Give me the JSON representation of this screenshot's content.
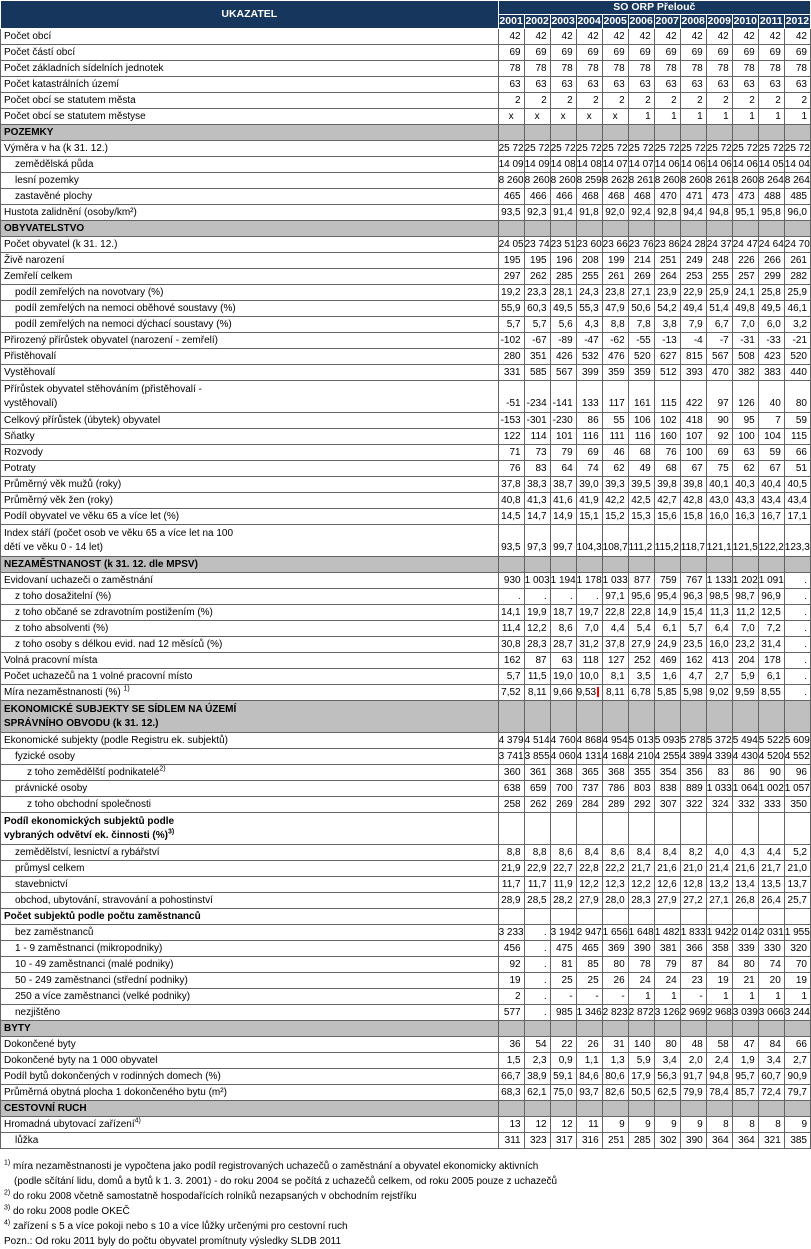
{
  "colors": {
    "header_bg": "#17365D",
    "header_text": "#FFFFFF",
    "section_bg": "#BFBFBF",
    "cell_border": "#636363",
    "cursor_mark": "#FF0000"
  },
  "header": {
    "ukazatel": "UKAZATEL",
    "region": "SO ORP Přelouč",
    "years": [
      "2001",
      "2002",
      "2003",
      "2004",
      "2005",
      "2006",
      "2007",
      "2008",
      "2009",
      "2010",
      "2011",
      "2012"
    ]
  },
  "rows": [
    {
      "t": "r",
      "label": "Počet obcí",
      "ind": 0,
      "v": [
        "42",
        "42",
        "42",
        "42",
        "42",
        "42",
        "42",
        "42",
        "42",
        "42",
        "42",
        "42"
      ]
    },
    {
      "t": "r",
      "label": "Počet částí obcí",
      "ind": 0,
      "v": [
        "69",
        "69",
        "69",
        "69",
        "69",
        "69",
        "69",
        "69",
        "69",
        "69",
        "69",
        "69"
      ]
    },
    {
      "t": "r",
      "label": "Počet základních sídelních jednotek",
      "ind": 0,
      "v": [
        "78",
        "78",
        "78",
        "78",
        "78",
        "78",
        "78",
        "78",
        "78",
        "78",
        "78",
        "78"
      ]
    },
    {
      "t": "r",
      "label": "Počet katastrálních území",
      "ind": 0,
      "v": [
        "63",
        "63",
        "63",
        "63",
        "63",
        "63",
        "63",
        "63",
        "63",
        "63",
        "63",
        "63"
      ]
    },
    {
      "t": "r",
      "label": "Počet obcí se statutem města",
      "ind": 0,
      "v": [
        "2",
        "2",
        "2",
        "2",
        "2",
        "2",
        "2",
        "2",
        "2",
        "2",
        "2",
        "2"
      ]
    },
    {
      "t": "r",
      "label": "Počet obcí se statutem městyse",
      "ind": 0,
      "v": [
        "x",
        "x",
        "x",
        "x",
        "x",
        "1",
        "1",
        "1",
        "1",
        "1",
        "1",
        "1"
      ]
    },
    {
      "t": "s",
      "label": "POZEMKY"
    },
    {
      "t": "r",
      "label": "Výměra v ha (k 31. 12.)",
      "ind": 0,
      "v": [
        "25 722",
        "25 722",
        "25 722",
        "25 721",
        "25 721",
        "25 721",
        "25 721",
        "25 721",
        "25 721",
        "25 722",
        "25 722",
        "25 726"
      ]
    },
    {
      "t": "r",
      "label": "zemědělská půda",
      "ind": 1,
      "v": [
        "14 098",
        "14 092",
        "14 089",
        "14 083",
        "14 075",
        "14 071",
        "14 069",
        "14 066",
        "14 062",
        "14 061",
        "14 055",
        "14 049"
      ]
    },
    {
      "t": "r",
      "label": "lesní pozemky",
      "ind": 1,
      "v": [
        "8 260",
        "8 260",
        "8 260",
        "8 259",
        "8 262",
        "8 261",
        "8 260",
        "8 260",
        "8 261",
        "8 260",
        "8 264",
        "8 264"
      ]
    },
    {
      "t": "r",
      "label": "zastavěné plochy",
      "ind": 1,
      "v": [
        "465",
        "466",
        "466",
        "468",
        "468",
        "468",
        "470",
        "471",
        "473",
        "473",
        "488",
        "485"
      ]
    },
    {
      "t": "r",
      "label": "Hustota zalidnění (osoby/km²)",
      "ind": 0,
      "v": [
        "93,5",
        "92,3",
        "91,4",
        "91,8",
        "92,0",
        "92,4",
        "92,8",
        "94,4",
        "94,8",
        "95,1",
        "95,8",
        "96,0"
      ]
    },
    {
      "t": "s",
      "label": "OBYVATELSTVO"
    },
    {
      "t": "r",
      "label": "Počet obyvatel (k 31. 12.)",
      "ind": 0,
      "v": [
        "24 050",
        "23 749",
        "23 519",
        "23 605",
        "23 660",
        "23 766",
        "23 868",
        "24 286",
        "24 376",
        "24 471",
        "24 648",
        "24 707"
      ]
    },
    {
      "t": "r",
      "label": "Živě narození",
      "ind": 0,
      "v": [
        "195",
        "195",
        "196",
        "208",
        "199",
        "214",
        "251",
        "249",
        "248",
        "226",
        "266",
        "261"
      ]
    },
    {
      "t": "r",
      "label": "Zemřelí celkem",
      "ind": 0,
      "v": [
        "297",
        "262",
        "285",
        "255",
        "261",
        "269",
        "264",
        "253",
        "255",
        "257",
        "299",
        "282"
      ]
    },
    {
      "t": "r",
      "label": "podíl zemřelých na novotvary (%)",
      "ind": 1,
      "v": [
        "19,2",
        "23,3",
        "28,1",
        "24,3",
        "23,8",
        "27,1",
        "23,9",
        "22,9",
        "25,9",
        "24,1",
        "25,8",
        "25,9"
      ]
    },
    {
      "t": "r",
      "label": "podíl zemřelých na nemoci oběhové soustavy (%)",
      "ind": 1,
      "v": [
        "55,9",
        "60,3",
        "49,5",
        "55,3",
        "47,9",
        "50,6",
        "54,2",
        "49,4",
        "51,4",
        "49,8",
        "49,5",
        "46,1"
      ]
    },
    {
      "t": "r",
      "label": "podíl zemřelých na nemoci dýchací soustavy (%)",
      "ind": 1,
      "v": [
        "5,7",
        "5,7",
        "5,6",
        "4,3",
        "8,8",
        "7,8",
        "3,8",
        "7,9",
        "6,7",
        "7,0",
        "6,0",
        "3,2"
      ]
    },
    {
      "t": "r",
      "label": "Přirozený přírůstek obyvatel (narození - zemřelí)",
      "ind": 0,
      "v": [
        "-102",
        "-67",
        "-89",
        "-47",
        "-62",
        "-55",
        "-13",
        "-4",
        "-7",
        "-31",
        "-33",
        "-21"
      ]
    },
    {
      "t": "r",
      "label": "Přistěhovalí",
      "ind": 0,
      "v": [
        "280",
        "351",
        "426",
        "532",
        "476",
        "520",
        "627",
        "815",
        "567",
        "508",
        "423",
        "520"
      ]
    },
    {
      "t": "r",
      "label": "Vystěhovalí",
      "ind": 0,
      "v": [
        "331",
        "585",
        "567",
        "399",
        "359",
        "359",
        "512",
        "393",
        "470",
        "382",
        "383",
        "440"
      ]
    },
    {
      "t": "r",
      "label": "Přírůstek obyvatel stěhováním (přistěhovalí -\nvystěhovalí)",
      "ind": 0,
      "v": [
        "-51",
        "-234",
        "-141",
        "133",
        "117",
        "161",
        "115",
        "422",
        "97",
        "126",
        "40",
        "80"
      ]
    },
    {
      "t": "r",
      "label": "Celkový přírůstek (úbytek) obyvatel",
      "ind": 0,
      "v": [
        "-153",
        "-301",
        "-230",
        "86",
        "55",
        "106",
        "102",
        "418",
        "90",
        "95",
        "7",
        "59"
      ]
    },
    {
      "t": "r",
      "label": "Sňatky",
      "ind": 0,
      "v": [
        "122",
        "114",
        "101",
        "116",
        "111",
        "116",
        "160",
        "107",
        "92",
        "100",
        "104",
        "115"
      ]
    },
    {
      "t": "r",
      "label": "Rozvody",
      "ind": 0,
      "v": [
        "71",
        "73",
        "79",
        "69",
        "46",
        "68",
        "76",
        "100",
        "69",
        "63",
        "59",
        "66"
      ]
    },
    {
      "t": "r",
      "label": "Potraty",
      "ind": 0,
      "v": [
        "76",
        "83",
        "64",
        "74",
        "62",
        "49",
        "68",
        "67",
        "75",
        "62",
        "67",
        "51"
      ]
    },
    {
      "t": "r",
      "label": "Průměrný věk mužů (roky)",
      "ind": 0,
      "v": [
        "37,8",
        "38,3",
        "38,7",
        "39,0",
        "39,3",
        "39,5",
        "39,8",
        "39,8",
        "40,1",
        "40,3",
        "40,4",
        "40,5"
      ]
    },
    {
      "t": "r",
      "label": "Průměrný věk žen (roky)",
      "ind": 0,
      "v": [
        "40,8",
        "41,3",
        "41,6",
        "41,9",
        "42,2",
        "42,5",
        "42,7",
        "42,8",
        "43,0",
        "43,3",
        "43,4",
        "43,4"
      ]
    },
    {
      "t": "r",
      "label": "Podíl obyvatel ve věku 65 a více let (%)",
      "ind": 0,
      "v": [
        "14,5",
        "14,7",
        "14,9",
        "15,1",
        "15,2",
        "15,3",
        "15,6",
        "15,8",
        "16,0",
        "16,3",
        "16,7",
        "17,1"
      ]
    },
    {
      "t": "r",
      "label": "Index stáří (počet osob ve věku 65 a více let na 100\ndětí ve věku 0 - 14 let)",
      "ind": 0,
      "v": [
        "93,5",
        "97,3",
        "99,7",
        "104,3",
        "108,7",
        "111,2",
        "115,2",
        "118,7",
        "121,1",
        "121,5",
        "122,2",
        "123,3"
      ]
    },
    {
      "t": "s",
      "label": "NEZAMĚSTNANOST (k 31. 12. dle MPSV)"
    },
    {
      "t": "r",
      "label": "Evidovaní uchazeči o zaměstnání",
      "ind": 0,
      "v": [
        "930",
        "1 003",
        "1 194",
        "1 178",
        "1 033",
        "877",
        "759",
        "767",
        "1 133",
        "1 202",
        "1 091",
        "."
      ]
    },
    {
      "t": "r",
      "label": "z toho dosažitelní (%)",
      "ind": 1,
      "v": [
        ".",
        ".",
        ".",
        ".",
        "97,1",
        "95,6",
        "95,4",
        "96,3",
        "98,5",
        "98,7",
        "96,9",
        "."
      ]
    },
    {
      "t": "r",
      "label": "z toho občané se zdravotním postižením (%)",
      "ind": 1,
      "v": [
        "14,1",
        "19,9",
        "18,7",
        "19,7",
        "22,8",
        "22,8",
        "14,9",
        "15,4",
        "11,3",
        "11,2",
        "12,5",
        "."
      ]
    },
    {
      "t": "r",
      "label": "z toho absolventi (%)",
      "ind": 1,
      "v": [
        "11,4",
        "12,2",
        "8,6",
        "7,0",
        "4,4",
        "5,4",
        "6,1",
        "5,7",
        "6,4",
        "7,0",
        "7,2",
        "."
      ]
    },
    {
      "t": "r",
      "label": "z toho osoby s délkou evid. nad 12 měsíců (%)",
      "ind": 1,
      "v": [
        "30,8",
        "28,3",
        "28,7",
        "31,2",
        "37,8",
        "27,9",
        "24,9",
        "23,5",
        "16,0",
        "23,2",
        "31,4",
        "."
      ]
    },
    {
      "t": "r",
      "label": "Volná pracovní místa",
      "ind": 0,
      "v": [
        "162",
        "87",
        "63",
        "118",
        "127",
        "252",
        "469",
        "162",
        "413",
        "204",
        "178",
        "."
      ]
    },
    {
      "t": "r",
      "label": "Počet uchazečů na 1 volné pracovní místo",
      "ind": 0,
      "v": [
        "5,7",
        "11,5",
        "19,0",
        "10,0",
        "8,1",
        "3,5",
        "1,6",
        "4,7",
        "2,7",
        "5,9",
        "6,1",
        "."
      ]
    },
    {
      "t": "r",
      "label": "Míra nezaměstnanosti (%) ",
      "sup": "1)",
      "ind": 0,
      "mark": 3,
      "v": [
        "7,52",
        "8,11",
        "9,66",
        "9,53",
        "8,11",
        "6,78",
        "5,85",
        "5,98",
        "9,02",
        "9,59",
        "8,55",
        "."
      ]
    },
    {
      "t": "s",
      "label": "EKONOMICKÉ SUBJEKTY SE SÍDLEM NA ÚZEMÍ\nSPRÁVNÍHO OBVODU (k 31. 12.)"
    },
    {
      "t": "r",
      "label": "Ekonomické subjekty (podle Registru ek. subjektů)",
      "ind": 0,
      "v": [
        "4 379",
        "4 514",
        "4 760",
        "4 868",
        "4 954",
        "5 013",
        "5 093",
        "5 278",
        "5 372",
        "5 494",
        "5 522",
        "5 609"
      ]
    },
    {
      "t": "r",
      "label": "fyzické osoby",
      "ind": 1,
      "v": [
        "3 741",
        "3 855",
        "4 060",
        "4 131",
        "4 168",
        "4 210",
        "4 255",
        "4 389",
        "4 339",
        "4 430",
        "4 520",
        "4 552"
      ]
    },
    {
      "t": "r",
      "label": "z toho zemědělští podnikatelé",
      "sup": "2)",
      "ind": 2,
      "v": [
        "360",
        "361",
        "368",
        "365",
        "368",
        "355",
        "354",
        "356",
        "83",
        "86",
        "90",
        "96"
      ]
    },
    {
      "t": "r",
      "label": "právnické osoby",
      "ind": 1,
      "v": [
        "638",
        "659",
        "700",
        "737",
        "786",
        "803",
        "838",
        "889",
        "1 033",
        "1 064",
        "1 002",
        "1 057"
      ]
    },
    {
      "t": "r",
      "label": "z toho obchodní společnosti",
      "ind": 2,
      "v": [
        "258",
        "262",
        "269",
        "284",
        "289",
        "292",
        "307",
        "322",
        "324",
        "332",
        "333",
        "350"
      ]
    },
    {
      "t": "r",
      "label": "Podíl ekonomických subjektů podle\nvybraných odvětví ek. činnosti (%)",
      "sup": "3)",
      "ind": 0,
      "bold": true,
      "v": [
        "",
        "",
        "",
        "",
        "",
        "",
        "",
        "",
        "",
        "",
        "",
        ""
      ]
    },
    {
      "t": "r",
      "label": "zemědělství, lesnictví a rybářství",
      "ind": 1,
      "v": [
        "8,8",
        "8,8",
        "8,6",
        "8,4",
        "8,6",
        "8,4",
        "8,4",
        "8,2",
        "4,0",
        "4,3",
        "4,4",
        "5,2"
      ]
    },
    {
      "t": "r",
      "label": "průmysl celkem",
      "ind": 1,
      "v": [
        "21,9",
        "22,9",
        "22,7",
        "22,8",
        "22,2",
        "21,7",
        "21,6",
        "21,0",
        "21,4",
        "21,6",
        "21,7",
        "21,0"
      ]
    },
    {
      "t": "r",
      "label": "stavebnictví",
      "ind": 1,
      "v": [
        "11,7",
        "11,7",
        "11,9",
        "12,2",
        "12,3",
        "12,2",
        "12,6",
        "12,8",
        "13,2",
        "13,4",
        "13,5",
        "13,7"
      ]
    },
    {
      "t": "r",
      "label": "obchod, ubytování, stravování a pohostinství",
      "ind": 1,
      "v": [
        "28,9",
        "28,5",
        "28,2",
        "27,9",
        "28,0",
        "28,3",
        "27,9",
        "27,2",
        "27,1",
        "26,8",
        "26,4",
        "25,7"
      ]
    },
    {
      "t": "r",
      "label": "Počet subjektů  podle počtu zaměstnanců",
      "ind": 0,
      "bold": true,
      "v": [
        "",
        "",
        "",
        "",
        "",
        "",
        "",
        "",
        "",
        "",
        "",
        ""
      ]
    },
    {
      "t": "r",
      "label": "bez zaměstnanců",
      "ind": 1,
      "v": [
        "3 233",
        ".",
        "3 194",
        "2 947",
        "1 656",
        "1 648",
        "1 482",
        "1 833",
        "1 942",
        "2 014",
        "2 031",
        "1 955"
      ]
    },
    {
      "t": "r",
      "label": "1 - 9 zaměstnanci (mikropodniky)",
      "ind": 1,
      "v": [
        "456",
        ".",
        "475",
        "465",
        "369",
        "390",
        "381",
        "366",
        "358",
        "339",
        "330",
        "320"
      ]
    },
    {
      "t": "r",
      "label": "10 - 49 zaměstnanci (malé podniky)",
      "ind": 1,
      "v": [
        "92",
        ".",
        "81",
        "85",
        "80",
        "78",
        "79",
        "87",
        "84",
        "80",
        "74",
        "70"
      ]
    },
    {
      "t": "r",
      "label": "50 - 249 zaměstnanci (střední podniky)",
      "ind": 1,
      "v": [
        "19",
        ".",
        "25",
        "25",
        "26",
        "24",
        "24",
        "23",
        "19",
        "21",
        "20",
        "19"
      ]
    },
    {
      "t": "r",
      "label": "250 a více zaměstnanci (velké podniky)",
      "ind": 1,
      "v": [
        "2",
        ".",
        "-",
        "-",
        "-",
        "1",
        "1",
        "-",
        "1",
        "1",
        "1",
        "1"
      ]
    },
    {
      "t": "r",
      "label": "nezjištěno",
      "ind": 1,
      "v": [
        "577",
        ".",
        "985",
        "1 346",
        "2 823",
        "2 872",
        "3 126",
        "2 969",
        "2 968",
        "3 039",
        "3 066",
        "3 244"
      ]
    },
    {
      "t": "s",
      "label": "BYTY"
    },
    {
      "t": "r",
      "label": "Dokončené byty",
      "ind": 0,
      "v": [
        "36",
        "54",
        "22",
        "26",
        "31",
        "140",
        "80",
        "48",
        "58",
        "47",
        "84",
        "66"
      ]
    },
    {
      "t": "r",
      "label": "Dokončené byty na 1 000 obyvatel",
      "ind": 0,
      "v": [
        "1,5",
        "2,3",
        "0,9",
        "1,1",
        "1,3",
        "5,9",
        "3,4",
        "2,0",
        "2,4",
        "1,9",
        "3,4",
        "2,7"
      ]
    },
    {
      "t": "r",
      "label": "Podíl bytů dokončených v rodinných domech (%)",
      "ind": 0,
      "v": [
        "66,7",
        "38,9",
        "59,1",
        "84,6",
        "80,6",
        "17,9",
        "56,3",
        "91,7",
        "94,8",
        "95,7",
        "60,7",
        "90,9"
      ]
    },
    {
      "t": "r",
      "label": "Průměrná obytná plocha 1 dokončeného bytu (m²)",
      "ind": 0,
      "v": [
        "68,3",
        "62,1",
        "75,0",
        "93,7",
        "82,6",
        "50,5",
        "62,5",
        "79,9",
        "78,4",
        "85,7",
        "72,4",
        "79,7"
      ]
    },
    {
      "t": "s",
      "label": "CESTOVNÍ RUCH"
    },
    {
      "t": "r",
      "label": "Hromadná ubytovací zařízení",
      "sup": "4)",
      "ind": 0,
      "v": [
        "13",
        "12",
        "12",
        "11",
        "9",
        "9",
        "9",
        "9",
        "8",
        "8",
        "8",
        "9"
      ]
    },
    {
      "t": "r",
      "label": "lůžka",
      "ind": 1,
      "v": [
        "311",
        "323",
        "317",
        "316",
        "251",
        "285",
        "302",
        "390",
        "364",
        "364",
        "321",
        "385"
      ]
    }
  ],
  "footnotes": [
    {
      "sup": "1)",
      "text": "míra nezaměstnanosti je vypočtena jako podíl registrovaných uchazečů o zaměstnání a obyvatel ekonomicky aktivních",
      "cont": false
    },
    {
      "sup": "",
      "text": "(podle sčítání lidu, domů a bytů k 1. 3. 2001) - do roku 2004 se počítá z uchazečů celkem, od roku 2005 pouze z uchazečů",
      "cont": true
    },
    {
      "sup": "2)",
      "text": "do roku 2008 včetně samostatně hospodařících rolníků nezapsaných v obchodním rejstříku",
      "cont": false
    },
    {
      "sup": "3)",
      "text": "do roku 2008 podle OKEČ",
      "cont": false
    },
    {
      "sup": "4)",
      "text": "zařízení s 5 a více pokoji nebo s 10 a více lůžky určenými pro cestovní ruch",
      "cont": false
    },
    {
      "sup": "",
      "text": "Pozn.: Od roku 2011 byly do počtu obyvatel promítnuty výsledky SLDB 2011",
      "cont": false
    }
  ]
}
